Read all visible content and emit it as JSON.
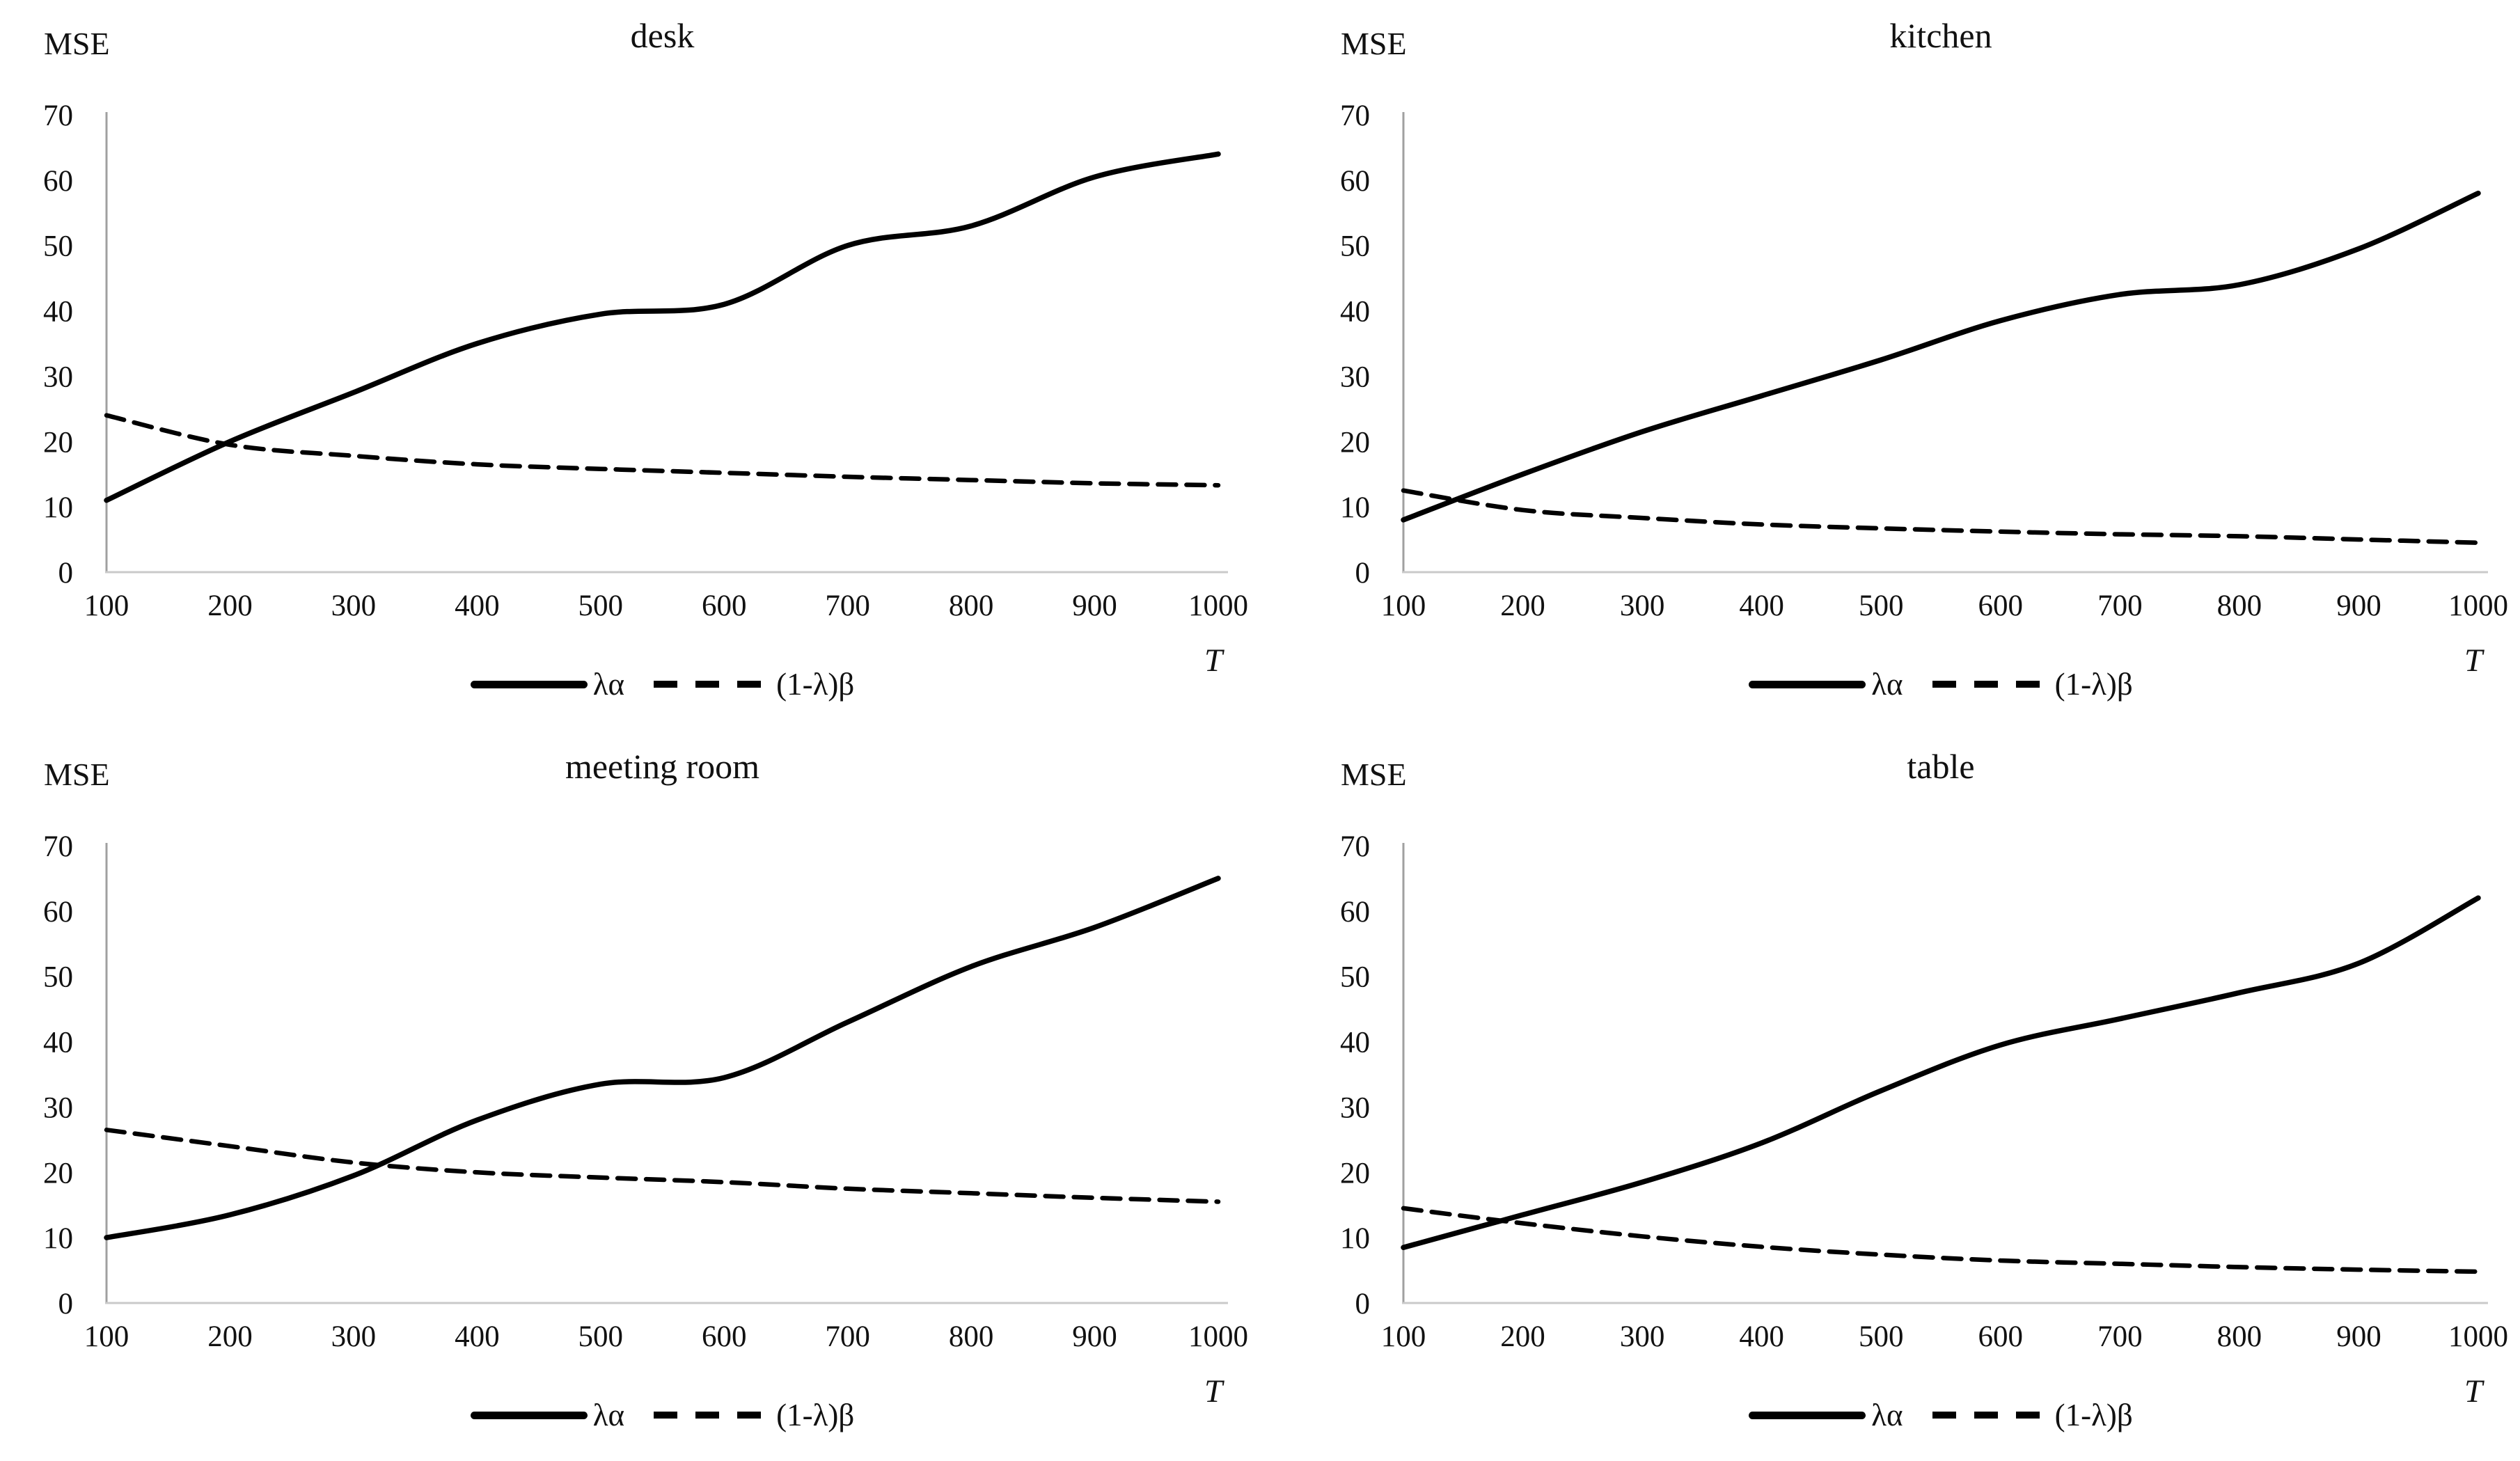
{
  "page": {
    "background": "#ffffff",
    "text_color": "#111111"
  },
  "styles": {
    "line_color": "#000000",
    "y_axis_line_color": "#a0a0a0",
    "x_axis_line_color": "#c9c9c9"
  },
  "chart_data": [
    {
      "type": "line",
      "title": "desk",
      "ylabel": "MSE",
      "xlabel": "T",
      "x": [
        100,
        200,
        300,
        400,
        500,
        600,
        700,
        800,
        900,
        1000
      ],
      "y_ticks": [
        0,
        10,
        20,
        30,
        40,
        50,
        60,
        70
      ],
      "ylim": [
        0,
        70
      ],
      "grid": false,
      "legend_position": "bottom",
      "series": [
        {
          "name": "λα",
          "style": "solid",
          "values": [
            11,
            20,
            27.5,
            35,
            39.5,
            41,
            50,
            53,
            60.5,
            64
          ]
        },
        {
          "name": "(1-λ)β",
          "style": "dashed",
          "values": [
            24,
            19.5,
            17.8,
            16.5,
            15.8,
            15.2,
            14.6,
            14.1,
            13.6,
            13.3
          ]
        }
      ]
    },
    {
      "type": "line",
      "title": "kitchen",
      "ylabel": "MSE",
      "xlabel": "T",
      "x": [
        100,
        200,
        300,
        400,
        500,
        600,
        700,
        800,
        900,
        1000
      ],
      "y_ticks": [
        0,
        10,
        20,
        30,
        40,
        50,
        60,
        70
      ],
      "ylim": [
        0,
        70
      ],
      "grid": false,
      "legend_position": "bottom",
      "series": [
        {
          "name": "λα",
          "style": "solid",
          "values": [
            8,
            15,
            21.5,
            27,
            32.5,
            38.5,
            42.5,
            44,
            49.5,
            58
          ]
        },
        {
          "name": "(1-λ)β",
          "style": "dashed",
          "values": [
            12.5,
            9.5,
            8.3,
            7.3,
            6.7,
            6.2,
            5.8,
            5.5,
            5,
            4.5
          ]
        }
      ]
    },
    {
      "type": "line",
      "title": "meeting room",
      "ylabel": "MSE",
      "xlabel": "T",
      "x": [
        100,
        200,
        300,
        400,
        500,
        600,
        700,
        800,
        900,
        1000
      ],
      "y_ticks": [
        0,
        10,
        20,
        30,
        40,
        50,
        60,
        70
      ],
      "ylim": [
        0,
        70
      ],
      "grid": false,
      "legend_position": "bottom",
      "series": [
        {
          "name": "λα",
          "style": "solid",
          "values": [
            10,
            13.5,
            19.5,
            28,
            33.5,
            34.5,
            43,
            51.5,
            57.5,
            65
          ]
        },
        {
          "name": "(1-λ)β",
          "style": "dashed",
          "values": [
            26.5,
            24,
            21.5,
            20,
            19.2,
            18.5,
            17.5,
            16.8,
            16.1,
            15.5
          ]
        }
      ]
    },
    {
      "type": "line",
      "title": "table",
      "ylabel": "MSE",
      "xlabel": "T",
      "x": [
        100,
        200,
        300,
        400,
        500,
        600,
        700,
        800,
        900,
        1000
      ],
      "y_ticks": [
        0,
        10,
        20,
        30,
        40,
        50,
        60,
        70
      ],
      "ylim": [
        0,
        70
      ],
      "grid": false,
      "legend_position": "bottom",
      "series": [
        {
          "name": "λα",
          "style": "solid",
          "values": [
            8.5,
            13.5,
            18.5,
            24.5,
            32.5,
            39.5,
            43.5,
            47.5,
            52,
            62
          ]
        },
        {
          "name": "(1-λ)β",
          "style": "dashed",
          "values": [
            14.5,
            12.2,
            10.2,
            8.6,
            7.4,
            6.5,
            6,
            5.5,
            5.1,
            4.8
          ]
        }
      ]
    }
  ]
}
